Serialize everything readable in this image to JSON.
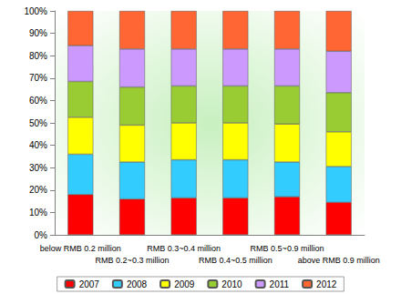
{
  "chart_data": {
    "type": "bar",
    "stacked": true,
    "grid": false,
    "legend": "bottom",
    "categories": [
      "below RMB 0.2 million",
      "RMB 0.2~0.3 million",
      "RMB 0.3~0.4 million",
      "RMB 0.4~0.5 million",
      "RMB 0.5~0.9 million",
      "above RMB 0.9 million"
    ],
    "series": [
      {
        "name": "2007",
        "color": "#ff0000",
        "values": [
          18,
          16,
          16.5,
          16.5,
          17,
          14.5
        ]
      },
      {
        "name": "2008",
        "color": "#33ccff",
        "values": [
          18,
          16.5,
          17,
          17,
          15.5,
          16
        ]
      },
      {
        "name": "2009",
        "color": "#ffff00",
        "values": [
          16.5,
          16.5,
          16.5,
          16.5,
          17,
          15.5
        ]
      },
      {
        "name": "2010",
        "color": "#99cc33",
        "values": [
          16,
          17,
          16.5,
          16.5,
          17,
          17.5
        ]
      },
      {
        "name": "2011",
        "color": "#cc99ff",
        "values": [
          16,
          17,
          16.5,
          16.5,
          16.5,
          18.5
        ]
      },
      {
        "name": "2012",
        "color": "#ff6633",
        "values": [
          15.5,
          17,
          17,
          17,
          17,
          18
        ]
      }
    ],
    "ylim": [
      0,
      100
    ],
    "yticks": [
      {
        "value": 0,
        "label": "0%"
      },
      {
        "value": 10,
        "label": "10%"
      },
      {
        "value": 20,
        "label": "20%"
      },
      {
        "value": 30,
        "label": "30%"
      },
      {
        "value": 40,
        "label": "40%"
      },
      {
        "value": 50,
        "label": "50%"
      },
      {
        "value": 60,
        "label": "60%"
      },
      {
        "value": 70,
        "label": "70%"
      },
      {
        "value": 80,
        "label": "80%"
      },
      {
        "value": 90,
        "label": "90%"
      },
      {
        "value": 100,
        "label": "100%"
      }
    ]
  }
}
